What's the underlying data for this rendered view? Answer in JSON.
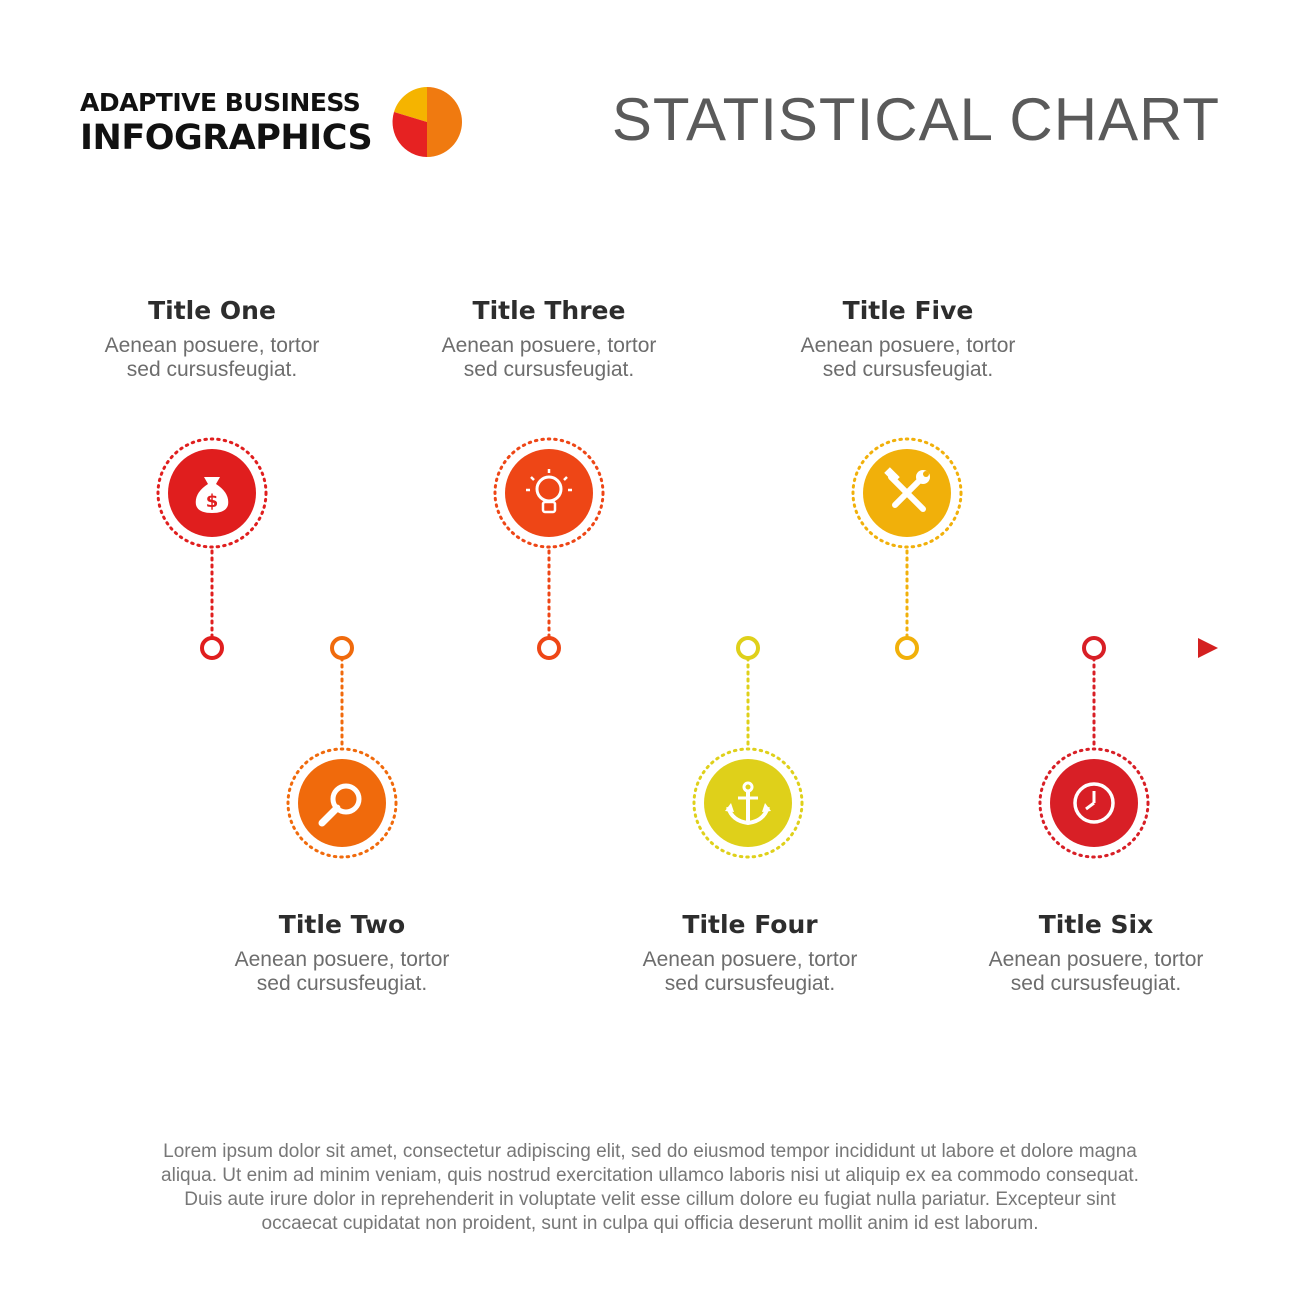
{
  "brand": {
    "line1": "ADAPTIVE BUSINESS",
    "line2": "INFOGRAPHICS",
    "logo_colors": [
      "#e62222",
      "#f07a10",
      "#f5b400"
    ]
  },
  "page_title": "STATISTICAL CHART",
  "timeline": {
    "arrow_color": "#d42020",
    "nodes": [
      {
        "title": "Title One",
        "desc_line1": "Aenean posuere, tortor",
        "desc_line2": "sed cursusfeugiat.",
        "icon": "money-bag-icon",
        "color": "#e01e1e",
        "position": "above"
      },
      {
        "title": "Title Two",
        "desc_line1": "Aenean posuere, tortor",
        "desc_line2": "sed cursusfeugiat.",
        "icon": "magnifier-icon",
        "color": "#f06a0c",
        "position": "below"
      },
      {
        "title": "Title Three",
        "desc_line1": "Aenean posuere, tortor",
        "desc_line2": "sed cursusfeugiat.",
        "icon": "lightbulb-icon",
        "color": "#ee4616",
        "position": "above"
      },
      {
        "title": "Title Four",
        "desc_line1": "Aenean posuere, tortor",
        "desc_line2": "sed cursusfeugiat.",
        "icon": "anchor-icon",
        "color": "#dfd01a",
        "position": "below"
      },
      {
        "title": "Title Five",
        "desc_line1": "Aenean posuere, tortor",
        "desc_line2": "sed cursusfeugiat.",
        "icon": "tools-icon",
        "color": "#f1b00a",
        "position": "above"
      },
      {
        "title": "Title Six",
        "desc_line1": "Aenean posuere, tortor",
        "desc_line2": "sed cursusfeugiat.",
        "icon": "clock-icon",
        "color": "#d81f26",
        "position": "below"
      }
    ]
  },
  "footer": {
    "line1": "Lorem ipsum dolor sit amet, consectetur adipiscing elit, sed do eiusmod tempor incididunt ut labore et dolore magna",
    "line2": "aliqua. Ut enim ad minim veniam, quis nostrud exercitation ullamco laboris nisi ut aliquip ex ea commodo consequat.",
    "line3": "Duis aute irure dolor in reprehenderit in voluptate velit esse cillum dolore eu fugiat nulla pariatur. Excepteur sint",
    "line4": "occaecat cupidatat non proident, sunt in culpa qui officia deserunt mollit anim id est laborum."
  }
}
